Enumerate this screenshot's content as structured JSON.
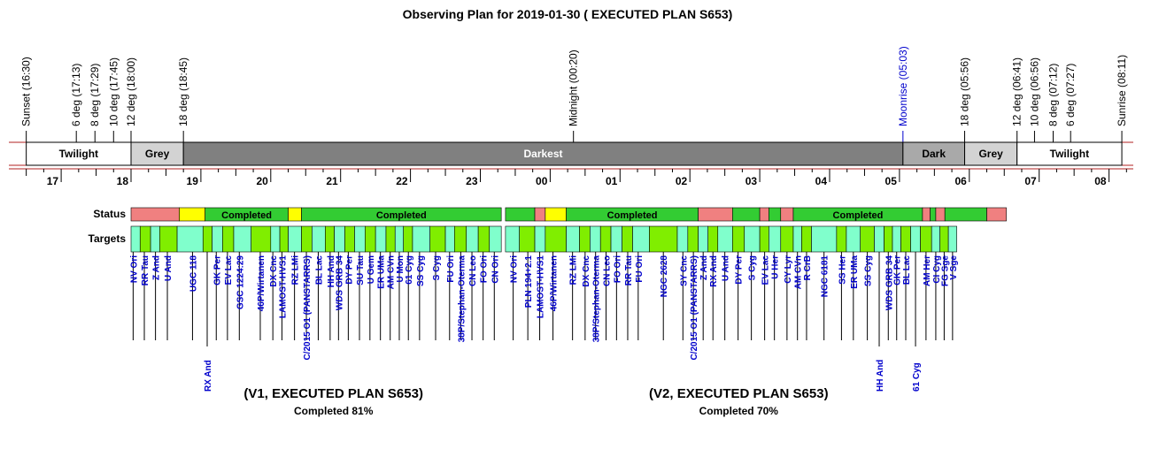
{
  "title": "Observing Plan for 2019-01-30 ( EXECUTED PLAN S653)",
  "events": [
    {
      "label": "Sunset (16:30)",
      "hour": 16.5,
      "tone": "normal"
    },
    {
      "label": "6 deg (17:13)",
      "hour": 17.2167,
      "tone": "normal"
    },
    {
      "label": "8 deg (17:29)",
      "hour": 17.4833,
      "tone": "normal"
    },
    {
      "label": "10 deg (17:45)",
      "hour": 17.75,
      "tone": "normal"
    },
    {
      "label": "12 deg (18:00)",
      "hour": 18.0,
      "tone": "normal"
    },
    {
      "label": "18 deg (18:45)",
      "hour": 18.75,
      "tone": "normal"
    },
    {
      "label": "Midnight (00:20)",
      "hour": 24.3333,
      "tone": "normal"
    },
    {
      "label": "Moonrise (05:03)",
      "hour": 29.05,
      "tone": "moon"
    },
    {
      "label": "18 deg (05:56)",
      "hour": 29.9333,
      "tone": "normal"
    },
    {
      "label": "12 deg (06:41)",
      "hour": 30.6833,
      "tone": "normal"
    },
    {
      "label": "10 deg (06:56)",
      "hour": 30.9333,
      "tone": "normal"
    },
    {
      "label": "8 deg (07:12)",
      "hour": 31.2,
      "tone": "normal"
    },
    {
      "label": "6 deg (07:27)",
      "hour": 31.45,
      "tone": "normal"
    },
    {
      "label": "Sunrise (08:11)",
      "hour": 32.1833,
      "tone": "normal"
    }
  ],
  "phases": [
    {
      "label": "Twilight",
      "start": 16.5,
      "end": 18.0,
      "color": "#ffffff",
      "text_color": "#000000"
    },
    {
      "label": "Grey",
      "start": 18.0,
      "end": 18.75,
      "color": "#d3d3d3",
      "text_color": "#000000"
    },
    {
      "label": "Darkest",
      "start": 18.75,
      "end": 29.05,
      "color": "#808080",
      "text_color": "#ffffff"
    },
    {
      "label": "Dark",
      "start": 29.05,
      "end": 29.9333,
      "color": "#a9a9a9",
      "text_color": "#000000"
    },
    {
      "label": "Grey",
      "start": 29.9333,
      "end": 30.6833,
      "color": "#d3d3d3",
      "text_color": "#000000"
    },
    {
      "label": "Twilight",
      "start": 30.6833,
      "end": 32.1833,
      "color": "#ffffff",
      "text_color": "#000000"
    }
  ],
  "hour_ticks": [
    {
      "label": "17",
      "hour": 17
    },
    {
      "label": "18",
      "hour": 18
    },
    {
      "label": "19",
      "hour": 19
    },
    {
      "label": "20",
      "hour": 20
    },
    {
      "label": "21",
      "hour": 21
    },
    {
      "label": "22",
      "hour": 22
    },
    {
      "label": "23",
      "hour": 23
    },
    {
      "label": "00",
      "hour": 24
    },
    {
      "label": "01",
      "hour": 25
    },
    {
      "label": "02",
      "hour": 26
    },
    {
      "label": "03",
      "hour": 27
    },
    {
      "label": "04",
      "hour": 28
    },
    {
      "label": "05",
      "hour": 29
    },
    {
      "label": "06",
      "hour": 30
    },
    {
      "label": "07",
      "hour": 31
    },
    {
      "label": "08",
      "hour": 32
    }
  ],
  "row_labels": {
    "status": "Status",
    "targets": "Targets"
  },
  "colors": {
    "completed": "#33cc33",
    "failed": "#f08080",
    "partial": "#ffff00",
    "target_a": "#80ffcc",
    "target_b": "#80ee00",
    "moon": "#0000cc",
    "label": "#0000cc"
  },
  "status_v1": [
    {
      "start": 18.0,
      "end": 18.69,
      "state": "failed",
      "text": ""
    },
    {
      "start": 18.69,
      "end": 19.06,
      "state": "partial",
      "text": ""
    },
    {
      "start": 19.06,
      "end": 20.25,
      "state": "completed",
      "text": "Completed"
    },
    {
      "start": 20.25,
      "end": 20.44,
      "state": "partial",
      "text": ""
    },
    {
      "start": 20.44,
      "end": 23.3,
      "state": "completed",
      "text": "Completed"
    }
  ],
  "status_v2": [
    {
      "start": 23.36,
      "end": 23.78,
      "state": "completed",
      "text": ""
    },
    {
      "start": 23.78,
      "end": 23.93,
      "state": "failed",
      "text": ""
    },
    {
      "start": 23.93,
      "end": 24.23,
      "state": "partial",
      "text": ""
    },
    {
      "start": 24.23,
      "end": 26.12,
      "state": "completed",
      "text": "Completed"
    },
    {
      "start": 26.12,
      "end": 26.61,
      "state": "failed",
      "text": ""
    },
    {
      "start": 26.61,
      "end": 27.0,
      "state": "completed",
      "text": ""
    },
    {
      "start": 27.0,
      "end": 27.13,
      "state": "failed",
      "text": ""
    },
    {
      "start": 27.13,
      "end": 27.3,
      "state": "completed",
      "text": ""
    },
    {
      "start": 27.3,
      "end": 27.48,
      "state": "failed",
      "text": ""
    },
    {
      "start": 27.48,
      "end": 29.33,
      "state": "completed",
      "text": "Completed"
    },
    {
      "start": 29.33,
      "end": 29.44,
      "state": "failed",
      "text": ""
    },
    {
      "start": 29.44,
      "end": 29.52,
      "state": "completed",
      "text": ""
    },
    {
      "start": 29.52,
      "end": 29.65,
      "state": "failed",
      "text": ""
    },
    {
      "start": 29.65,
      "end": 30.25,
      "state": "completed",
      "text": ""
    },
    {
      "start": 30.25,
      "end": 30.53,
      "state": "failed",
      "text": ""
    }
  ],
  "targets_v1": [
    {
      "name": "NV Ori",
      "hour": 18.03,
      "start": 18.0,
      "end": 18.13,
      "drop": false
    },
    {
      "name": "RR Tau",
      "hour": 18.19,
      "start": 18.13,
      "end": 18.28,
      "drop": false
    },
    {
      "name": "Z And",
      "hour": 18.35,
      "start": 18.28,
      "end": 18.41,
      "drop": false
    },
    {
      "name": "U And",
      "hour": 18.52,
      "start": 18.41,
      "end": 18.66,
      "drop": false
    },
    {
      "name": "UGC 118",
      "hour": 18.88,
      "start": 18.66,
      "end": 19.03,
      "drop": false
    },
    {
      "name": "RX And",
      "hour": 19.09,
      "start": 19.03,
      "end": 19.16,
      "drop": true
    },
    {
      "name": "GK Per",
      "hour": 19.22,
      "start": 19.16,
      "end": 19.31,
      "drop": false
    },
    {
      "name": "EV Lac",
      "hour": 19.38,
      "start": 19.31,
      "end": 19.47,
      "drop": false
    },
    {
      "name": "GSC 1224:29",
      "hour": 19.55,
      "start": 19.47,
      "end": 19.72,
      "drop": false
    },
    {
      "name": "46P/Wirtanen",
      "hour": 19.85,
      "start": 19.72,
      "end": 20.0,
      "drop": false
    },
    {
      "name": "DX Cnc",
      "hour": 20.03,
      "start": 20.0,
      "end": 20.13,
      "drop": false
    },
    {
      "name": "LAMOST-HVS1",
      "hour": 20.16,
      "start": 20.13,
      "end": 20.25,
      "drop": false
    },
    {
      "name": "RZ LMi",
      "hour": 20.34,
      "start": 20.25,
      "end": 20.44,
      "drop": false
    },
    {
      "name": "C/2015 O1 (PANSTARRS)",
      "hour": 20.51,
      "start": 20.44,
      "end": 20.59,
      "drop": false
    },
    {
      "name": "BL Lac",
      "hour": 20.68,
      "start": 20.59,
      "end": 20.78,
      "drop": false
    },
    {
      "name": "HH And",
      "hour": 20.85,
      "start": 20.78,
      "end": 20.91,
      "drop": false
    },
    {
      "name": "WDS GRB 34",
      "hour": 20.97,
      "start": 20.91,
      "end": 21.06,
      "drop": false
    },
    {
      "name": "DY Per",
      "hour": 21.11,
      "start": 21.06,
      "end": 21.2,
      "drop": false
    },
    {
      "name": "SU Tau",
      "hour": 21.27,
      "start": 21.2,
      "end": 21.35,
      "drop": false
    },
    {
      "name": "U Gem",
      "hour": 21.42,
      "start": 21.35,
      "end": 21.5,
      "drop": false
    },
    {
      "name": "ER UMa",
      "hour": 21.57,
      "start": 21.5,
      "end": 21.65,
      "drop": false
    },
    {
      "name": "AM CVn",
      "hour": 21.71,
      "start": 21.65,
      "end": 21.78,
      "drop": false
    },
    {
      "name": "U Mon",
      "hour": 21.84,
      "start": 21.78,
      "end": 21.9,
      "drop": false
    },
    {
      "name": "61 Cyg",
      "hour": 21.97,
      "start": 21.9,
      "end": 22.03,
      "drop": false
    },
    {
      "name": "SS Cyg",
      "hour": 22.13,
      "start": 22.03,
      "end": 22.28,
      "drop": false
    },
    {
      "name": "S Cyg",
      "hour": 22.36,
      "start": 22.28,
      "end": 22.5,
      "drop": false
    },
    {
      "name": "FU Ori",
      "hour": 22.56,
      "start": 22.5,
      "end": 22.63,
      "drop": false
    },
    {
      "name": "38P/Stephan-Oterma",
      "hour": 22.72,
      "start": 22.63,
      "end": 22.8,
      "drop": false
    },
    {
      "name": "CN Leo",
      "hour": 22.88,
      "start": 22.8,
      "end": 22.97,
      "drop": false
    },
    {
      "name": "FO Ori",
      "hour": 23.04,
      "start": 22.97,
      "end": 23.13,
      "drop": false
    },
    {
      "name": "CN Ori",
      "hour": 23.2,
      "start": 23.13,
      "end": 23.3,
      "drop": false
    }
  ],
  "targets_v2": [
    {
      "name": "NV Ori",
      "hour": 23.47,
      "start": 23.36,
      "end": 23.56,
      "drop": false
    },
    {
      "name": "PLN 194+2.1",
      "hour": 23.68,
      "start": 23.56,
      "end": 23.78,
      "drop": false
    },
    {
      "name": "LAMOST-HVS1",
      "hour": 23.85,
      "start": 23.78,
      "end": 23.93,
      "drop": false
    },
    {
      "name": "46P/Wirtanen",
      "hour": 24.04,
      "start": 23.93,
      "end": 24.23,
      "drop": false
    },
    {
      "name": "RZ LMi",
      "hour": 24.32,
      "start": 24.23,
      "end": 24.42,
      "drop": false
    },
    {
      "name": "DX Cnc",
      "hour": 24.5,
      "start": 24.42,
      "end": 24.57,
      "drop": false
    },
    {
      "name": "38P/Stephan-Oterma",
      "hour": 24.65,
      "start": 24.57,
      "end": 24.72,
      "drop": false
    },
    {
      "name": "CN Leo",
      "hour": 24.8,
      "start": 24.72,
      "end": 24.87,
      "drop": false
    },
    {
      "name": "FO Ori",
      "hour": 24.95,
      "start": 24.87,
      "end": 25.03,
      "drop": false
    },
    {
      "name": "RR Tau",
      "hour": 25.11,
      "start": 25.03,
      "end": 25.18,
      "drop": false
    },
    {
      "name": "FU Ori",
      "hour": 25.26,
      "start": 25.18,
      "end": 25.42,
      "drop": false
    },
    {
      "name": "NGC 2628",
      "hour": 25.62,
      "start": 25.42,
      "end": 25.82,
      "drop": false
    },
    {
      "name": "SY Cnc",
      "hour": 25.9,
      "start": 25.82,
      "end": 25.97,
      "drop": false
    },
    {
      "name": "C/2015 O1 (PANSTARRS)",
      "hour": 26.05,
      "start": 25.97,
      "end": 26.12,
      "drop": false
    },
    {
      "name": "Z And",
      "hour": 26.19,
      "start": 26.12,
      "end": 26.26,
      "drop": false
    },
    {
      "name": "RX And",
      "hour": 26.33,
      "start": 26.26,
      "end": 26.4,
      "drop": false
    },
    {
      "name": "U And",
      "hour": 26.5,
      "start": 26.4,
      "end": 26.61,
      "drop": false
    },
    {
      "name": "DY Per",
      "hour": 26.69,
      "start": 26.61,
      "end": 26.78,
      "drop": false
    },
    {
      "name": "S Cyg",
      "hour": 26.88,
      "start": 26.78,
      "end": 27.0,
      "drop": false
    },
    {
      "name": "EV Lac",
      "hour": 27.07,
      "start": 27.0,
      "end": 27.13,
      "drop": false
    },
    {
      "name": "U Her",
      "hour": 27.21,
      "start": 27.13,
      "end": 27.3,
      "drop": false
    },
    {
      "name": "CY Lyr",
      "hour": 27.39,
      "start": 27.3,
      "end": 27.48,
      "drop": false
    },
    {
      "name": "AM CVn",
      "hour": 27.54,
      "start": 27.48,
      "end": 27.6,
      "drop": false
    },
    {
      "name": "R CrB",
      "hour": 27.67,
      "start": 27.6,
      "end": 27.74,
      "drop": false
    },
    {
      "name": "NGC 6181",
      "hour": 27.92,
      "start": 27.74,
      "end": 28.1,
      "drop": false
    },
    {
      "name": "SS Her",
      "hour": 28.17,
      "start": 28.1,
      "end": 28.24,
      "drop": false
    },
    {
      "name": "ER UMa",
      "hour": 28.34,
      "start": 28.24,
      "end": 28.44,
      "drop": false
    },
    {
      "name": "SS Cyg",
      "hour": 28.54,
      "start": 28.44,
      "end": 28.64,
      "drop": false
    },
    {
      "name": "HH And",
      "hour": 28.71,
      "start": 28.64,
      "end": 28.78,
      "drop": true
    },
    {
      "name": "WDS GRB 34",
      "hour": 28.84,
      "start": 28.78,
      "end": 28.9,
      "drop": false
    },
    {
      "name": "GK Per",
      "hour": 28.96,
      "start": 28.9,
      "end": 29.02,
      "drop": false
    },
    {
      "name": "BL Lac",
      "hour": 29.09,
      "start": 29.02,
      "end": 29.16,
      "drop": false
    },
    {
      "name": "61 Cyg",
      "hour": 29.23,
      "start": 29.16,
      "end": 29.3,
      "drop": true
    },
    {
      "name": "AM Her",
      "hour": 29.38,
      "start": 29.3,
      "end": 29.46,
      "drop": false
    },
    {
      "name": "CI Cyg",
      "hour": 29.52,
      "start": 29.46,
      "end": 29.58,
      "drop": false
    },
    {
      "name": "FG Sge",
      "hour": 29.64,
      "start": 29.58,
      "end": 29.7,
      "drop": false
    },
    {
      "name": "V Sge",
      "hour": 29.76,
      "start": 29.7,
      "end": 29.82,
      "drop": false
    }
  ],
  "summaries": [
    {
      "title": "(V1, EXECUTED PLAN S653)",
      "subtitle": "Completed 81%",
      "hour": 21.0
    },
    {
      "title": "(V2, EXECUTED PLAN S653)",
      "subtitle": "Completed 70%",
      "hour": 26.8
    }
  ],
  "chart_data": {
    "type": "timeline",
    "title": "Observing Plan for 2019-01-30 ( EXECUTED PLAN S653)",
    "x_range_hours": [
      16.2,
      32.4
    ],
    "x_tick_labels": [
      "17",
      "18",
      "19",
      "20",
      "21",
      "22",
      "23",
      "00",
      "01",
      "02",
      "03",
      "04",
      "05",
      "06",
      "07",
      "08"
    ],
    "series": [
      {
        "name": "(V1, EXECUTED PLAN S653)",
        "completed_percent": 81
      },
      {
        "name": "(V2, EXECUTED PLAN S653)",
        "completed_percent": 70
      }
    ]
  }
}
